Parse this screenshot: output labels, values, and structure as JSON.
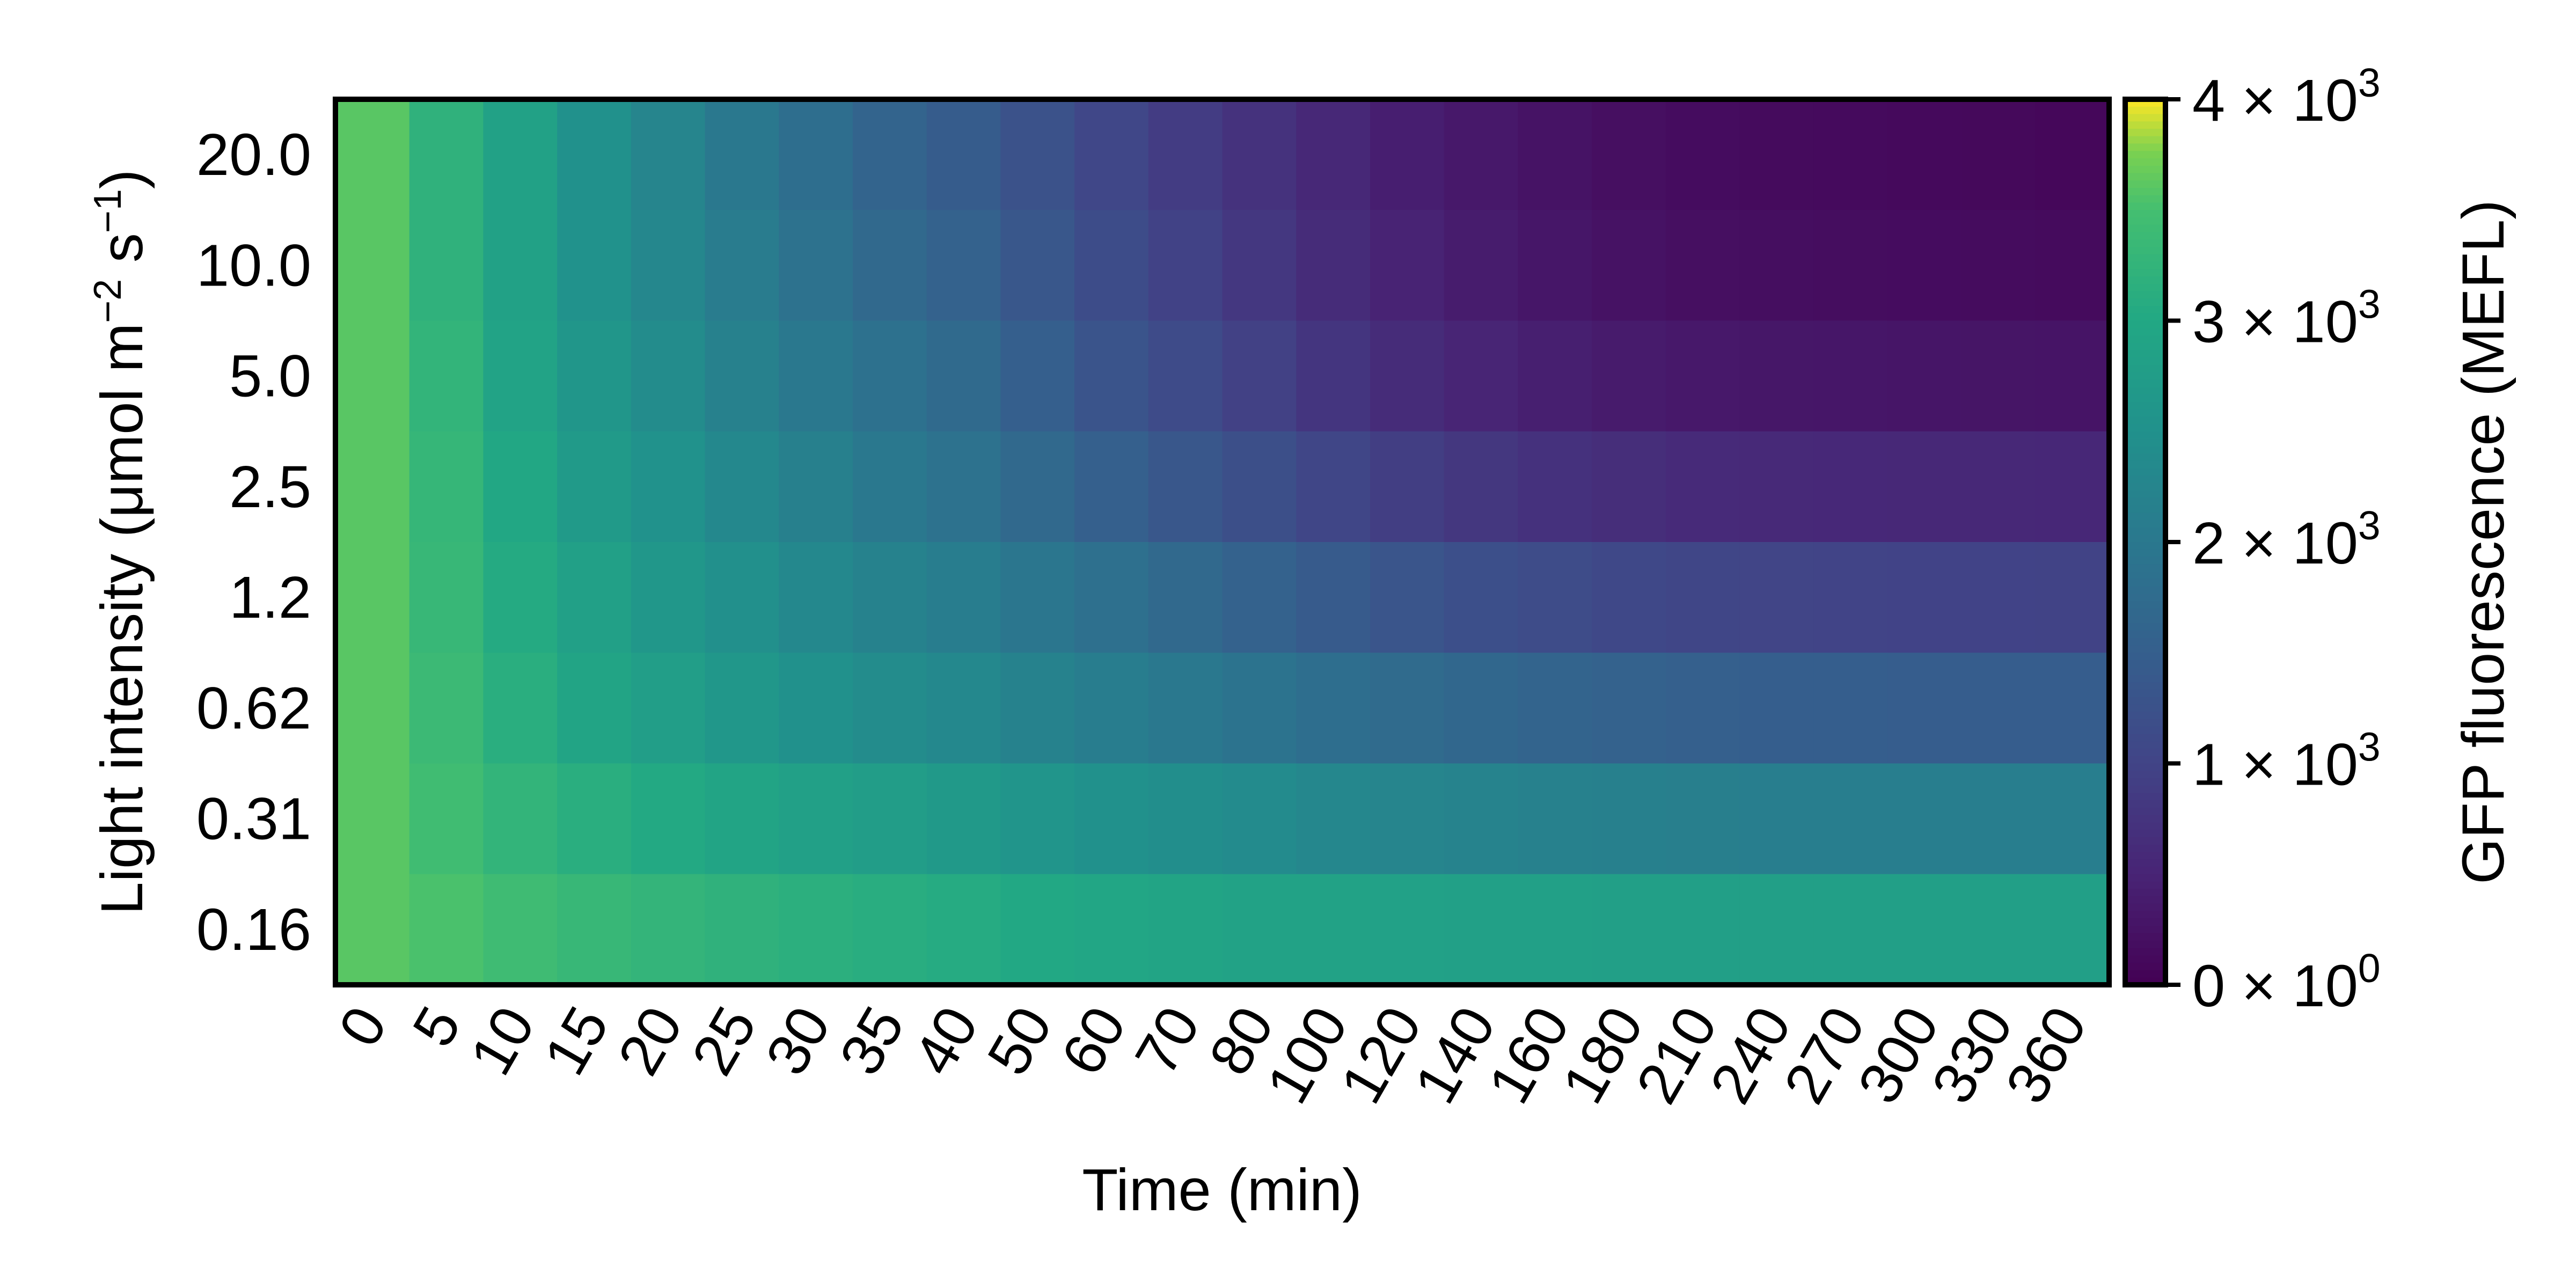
{
  "chart_data": {
    "type": "heatmap",
    "title": "",
    "xlabel": "Time (min)",
    "ylabel": {
      "text": "Light intensity (μmol m",
      "sup1": "−2",
      "mid": " s",
      "sup2": "−1",
      "end": ")"
    },
    "x_categories": [
      "0",
      "5",
      "10",
      "15",
      "20",
      "25",
      "30",
      "35",
      "40",
      "50",
      "60",
      "70",
      "80",
      "100",
      "120",
      "140",
      "160",
      "180",
      "210",
      "240",
      "270",
      "300",
      "330",
      "360"
    ],
    "y_categories": [
      "20.0",
      "10.0",
      "5.0",
      "2.5",
      "1.2",
      "0.62",
      "0.31",
      "0.16"
    ],
    "values": [
      [
        3600,
        3200,
        2850,
        2500,
        2250,
        2000,
        1800,
        1600,
        1450,
        1250,
        1050,
        880,
        720,
        560,
        420,
        330,
        260,
        200,
        160,
        140,
        130,
        120,
        110,
        90
      ],
      [
        3600,
        3200,
        2850,
        2520,
        2300,
        2080,
        1880,
        1700,
        1560,
        1350,
        1150,
        970,
        800,
        620,
        480,
        380,
        300,
        240,
        200,
        180,
        170,
        160,
        150,
        140
      ],
      [
        3600,
        3250,
        2900,
        2600,
        2400,
        2180,
        2000,
        1850,
        1720,
        1500,
        1300,
        1130,
        950,
        770,
        620,
        510,
        430,
        370,
        330,
        310,
        300,
        290,
        280,
        270
      ],
      [
        3600,
        3300,
        2980,
        2700,
        2520,
        2320,
        2150,
        2000,
        1880,
        1700,
        1520,
        1350,
        1200,
        1040,
        900,
        790,
        710,
        650,
        600,
        580,
        570,
        560,
        560,
        550
      ],
      [
        3600,
        3330,
        3050,
        2820,
        2640,
        2470,
        2320,
        2200,
        2100,
        1950,
        1830,
        1700,
        1560,
        1420,
        1310,
        1210,
        1140,
        1080,
        1030,
        1010,
        1000,
        990,
        990,
        980
      ],
      [
        3600,
        3380,
        3120,
        2920,
        2780,
        2640,
        2510,
        2400,
        2320,
        2200,
        2100,
        2000,
        1900,
        1800,
        1730,
        1660,
        1600,
        1550,
        1510,
        1490,
        1480,
        1470,
        1470,
        1470
      ],
      [
        3600,
        3440,
        3250,
        3120,
        3020,
        2920,
        2830,
        2750,
        2680,
        2590,
        2510,
        2440,
        2370,
        2300,
        2250,
        2210,
        2180,
        2150,
        2130,
        2120,
        2110,
        2110,
        2110,
        2110
      ],
      [
        3600,
        3530,
        3420,
        3330,
        3260,
        3200,
        3150,
        3100,
        3060,
        3000,
        2950,
        2910,
        2880,
        2860,
        2840,
        2830,
        2820,
        2810,
        2800,
        2800,
        2800,
        2800,
        2800,
        2800
      ]
    ],
    "colormap": "viridis",
    "colorbar": {
      "label": "GFP fluorescence (MEFL)",
      "range": [
        0,
        4000
      ],
      "ticks": [
        {
          "value": 4000,
          "mantissa": "4",
          "exponent": "3"
        },
        {
          "value": 3000,
          "mantissa": "3",
          "exponent": "3"
        },
        {
          "value": 2000,
          "mantissa": "2",
          "exponent": "3"
        },
        {
          "value": 1000,
          "mantissa": "1",
          "exponent": "3"
        },
        {
          "value": 0,
          "mantissa": "0",
          "exponent": "0"
        }
      ],
      "times_sign": "×",
      "base": "10"
    },
    "grid": false,
    "legend": "none"
  }
}
